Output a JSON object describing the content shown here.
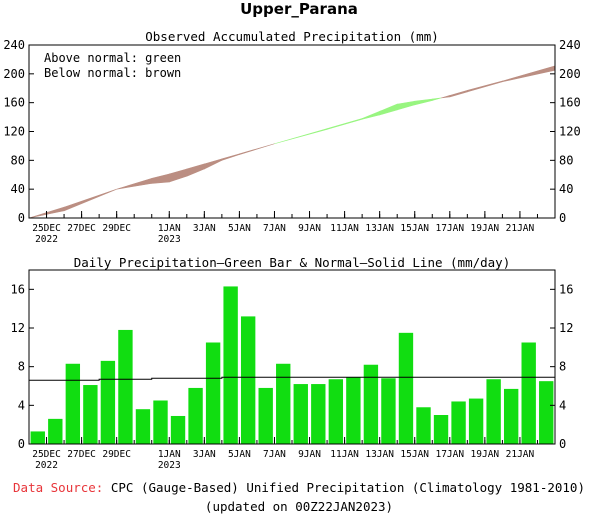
{
  "title": "Upper_Parana",
  "colors": {
    "above": "#98f580",
    "below": "#bb8e82",
    "bar": "#11dd11",
    "normal_line": "#000000",
    "source_label": "#e8353a"
  },
  "chart_data": [
    {
      "type": "area",
      "title": "Observed Accumulated Precipitation (mm)",
      "annotations": [
        "Above normal: green",
        "Below normal: brown"
      ],
      "ylim": [
        0,
        240
      ],
      "yticks": [
        "0",
        "40",
        "80",
        "120",
        "160",
        "200",
        "240"
      ],
      "xlim": [
        0,
        30
      ],
      "xticks": [
        {
          "x": 1,
          "label": "25DEC",
          "sub": "2022"
        },
        {
          "x": 3,
          "label": "27DEC"
        },
        {
          "x": 5,
          "label": "29DEC"
        },
        {
          "x": 8,
          "label": "1JAN",
          "sub": "2023"
        },
        {
          "x": 10,
          "label": "3JAN"
        },
        {
          "x": 12,
          "label": "5JAN"
        },
        {
          "x": 14,
          "label": "7JAN"
        },
        {
          "x": 16,
          "label": "9JAN"
        },
        {
          "x": 18,
          "label": "11JAN"
        },
        {
          "x": 20,
          "label": "13JAN"
        },
        {
          "x": 22,
          "label": "15JAN"
        },
        {
          "x": 24,
          "label": "17JAN"
        },
        {
          "x": 26,
          "label": "19JAN"
        },
        {
          "x": 28,
          "label": "21JAN"
        }
      ],
      "x": [
        0,
        2,
        5,
        7,
        8,
        9,
        10,
        11,
        12,
        14,
        17,
        19,
        20,
        21,
        22,
        23,
        24,
        25,
        27,
        30
      ],
      "observed": [
        0,
        10,
        40,
        48,
        50,
        58,
        68,
        80,
        88,
        103,
        124,
        138,
        148,
        158,
        162,
        165,
        168,
        175,
        189,
        205
      ],
      "normal": [
        0,
        15,
        40,
        55,
        61,
        68,
        75,
        82,
        89,
        103,
        123,
        137,
        143,
        150,
        157,
        163,
        170,
        177,
        190,
        211
      ]
    },
    {
      "type": "bar",
      "title": "Daily Precipitation—Green Bar & Normal—Solid Line (mm/day)",
      "ylim": [
        0,
        18
      ],
      "yticks": [
        "0",
        "4",
        "8",
        "12",
        "16"
      ],
      "values": [
        1.3,
        2.6,
        8.3,
        6.1,
        8.6,
        11.8,
        3.6,
        4.5,
        2.9,
        5.8,
        10.5,
        16.3,
        13.2,
        5.8,
        8.3,
        6.2,
        6.2,
        6.7,
        6.9,
        8.2,
        6.8,
        11.5,
        3.8,
        3.0,
        4.4,
        4.7,
        6.7,
        5.7,
        10.5,
        6.5
      ],
      "normal": [
        6.6,
        6.6,
        6.6,
        6.6,
        6.7,
        6.7,
        6.7,
        6.8,
        6.8,
        6.8,
        6.8,
        6.9,
        6.9,
        6.9,
        6.9,
        6.9,
        6.9,
        6.9,
        6.9,
        6.9,
        6.9,
        6.9,
        6.9,
        6.9,
        6.9,
        6.9,
        6.9,
        6.9,
        6.9,
        6.9
      ]
    }
  ],
  "footer": {
    "source_label": "Data Source:",
    "source_text": "CPC (Gauge-Based) Unified Precipitation (Climatology 1981-2010)",
    "updated": "(updated on 00Z22JAN2023)"
  }
}
